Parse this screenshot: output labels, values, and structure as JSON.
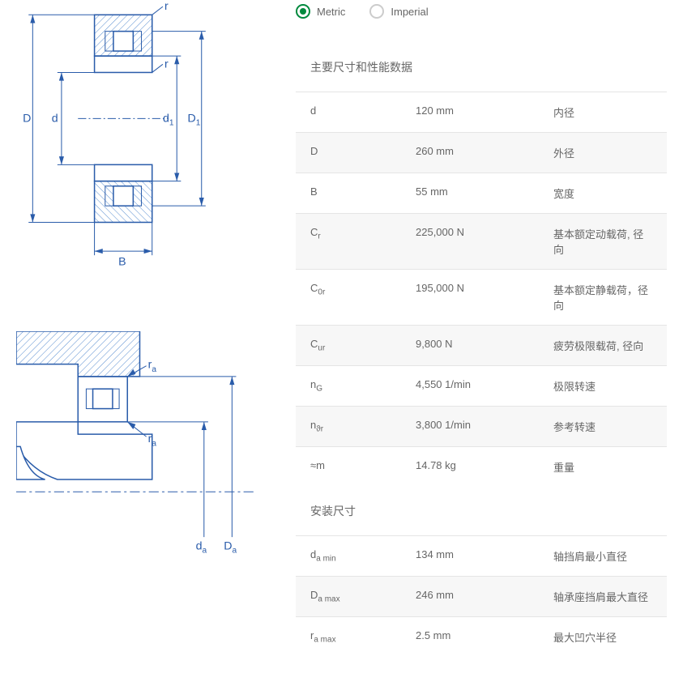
{
  "units": {
    "metric": "Metric",
    "imperial": "Imperial",
    "selected": "metric"
  },
  "diagram1": {
    "labels": {
      "r1": "r",
      "r2": "r",
      "D": "D",
      "d": "d",
      "d1": "d",
      "d1sub": "1",
      "D1": "D",
      "D1sub": "1",
      "B": "B"
    },
    "colors": {
      "stroke": "#2a5caa",
      "hatch": "#5b8fd0"
    }
  },
  "diagram2": {
    "labels": {
      "ra1": "r",
      "ra1sub": "a",
      "ra2": "r",
      "ra2sub": "a",
      "da": "d",
      "dasub": "a",
      "Da": "D",
      "Dasub": "a"
    },
    "colors": {
      "stroke": "#2a5caa",
      "hatch": "#5b8fd0"
    }
  },
  "section1": {
    "title": "主要尺寸和性能数据",
    "rows": [
      {
        "sym": "d",
        "sub": "",
        "val": "120 mm",
        "desc": "内径"
      },
      {
        "sym": "D",
        "sub": "",
        "val": "260 mm",
        "desc": "外径"
      },
      {
        "sym": "B",
        "sub": "",
        "val": "55 mm",
        "desc": "宽度"
      },
      {
        "sym": "C",
        "sub": "r",
        "val": "225,000 N",
        "desc": "基本额定动载荷, 径向"
      },
      {
        "sym": "C",
        "sub": "0r",
        "val": "195,000 N",
        "desc": "基本额定静载荷，径向"
      },
      {
        "sym": "C",
        "sub": "ur",
        "val": "9,800 N",
        "desc": "疲劳极限载荷, 径向"
      },
      {
        "sym": "n",
        "sub": "G",
        "val": "4,550 1/min",
        "desc": "极限转速"
      },
      {
        "sym": "n",
        "sub": "ϑr",
        "val": "3,800 1/min",
        "desc": "参考转速"
      },
      {
        "sym": "≈m",
        "sub": "",
        "val": "14.78 kg",
        "desc": "重量"
      }
    ]
  },
  "section2": {
    "title": "安装尺寸",
    "rows": [
      {
        "sym": "d",
        "sub": "a min",
        "val": "134 mm",
        "desc": "轴挡肩最小直径"
      },
      {
        "sym": "D",
        "sub": "a max",
        "val": "246 mm",
        "desc": "轴承座挡肩最大直径"
      },
      {
        "sym": "r",
        "sub": "a max",
        "val": "2.5 mm",
        "desc": "最大凹穴半径"
      }
    ]
  }
}
